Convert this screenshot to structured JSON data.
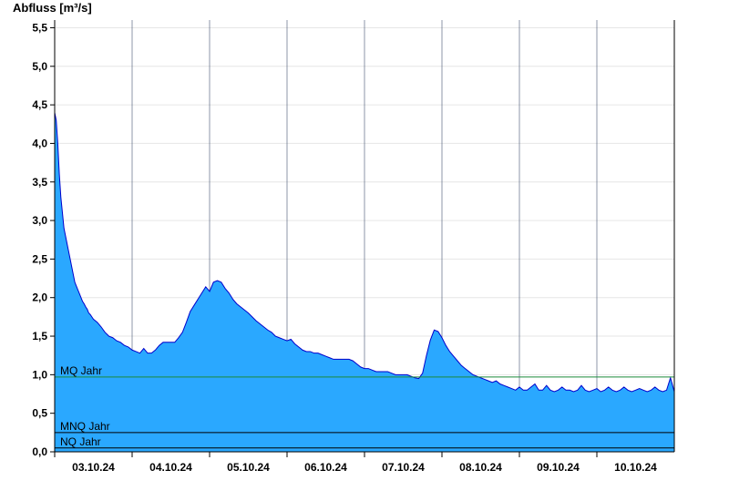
{
  "chart_data": {
    "type": "area",
    "title": "",
    "ylabel": "Abfluss [m³/s]",
    "xlabel": "",
    "ylim": [
      0,
      5.6
    ],
    "xlim_days": [
      "02.10.24 12:00",
      "10.10.24 12:00"
    ],
    "y_ticks": [
      "0,0",
      "0,5",
      "1,0",
      "1,5",
      "2,0",
      "2,5",
      "3,0",
      "3,5",
      "4,0",
      "4,5",
      "5,0",
      "5,5"
    ],
    "x_tick_labels": [
      "03.10.24",
      "04.10.24",
      "05.10.24",
      "06.10.24",
      "07.10.24",
      "08.10.24",
      "09.10.24",
      "10.10.24"
    ],
    "grid": "horizontal light grey, vertical day separators",
    "fill_color": "#2aa8ff",
    "line_color": "#0000cc",
    "series": [
      {
        "x_days_since_2024_10_03": [
          -0.5,
          -0.48,
          -0.46,
          -0.44,
          -0.42,
          -0.4,
          -0.38,
          -0.36,
          -0.34,
          -0.32,
          -0.3,
          -0.28,
          -0.26,
          -0.24,
          -0.22,
          -0.2,
          -0.18,
          -0.16,
          -0.14,
          -0.12,
          -0.1,
          -0.08,
          -0.06,
          -0.04,
          -0.02,
          0.0,
          0.05,
          0.1,
          0.15,
          0.2,
          0.25,
          0.3,
          0.35,
          0.4,
          0.45,
          0.5,
          0.55,
          0.6,
          0.65,
          0.7,
          0.75,
          0.8,
          0.85,
          0.9,
          0.95,
          1.0,
          1.05,
          1.1,
          1.15,
          1.2,
          1.25,
          1.3,
          1.35,
          1.4,
          1.45,
          1.5,
          1.55,
          1.6,
          1.65,
          1.7,
          1.75,
          1.8,
          1.85,
          1.9,
          1.95,
          2.0,
          2.05,
          2.1,
          2.15,
          2.2,
          2.25,
          2.3,
          2.35,
          2.4,
          2.45,
          2.5,
          2.55,
          2.6,
          2.65,
          2.7,
          2.75,
          2.8,
          2.85,
          2.9,
          2.95,
          3.0,
          3.05,
          3.1,
          3.15,
          3.2,
          3.25,
          3.3,
          3.35,
          3.4,
          3.45,
          3.5,
          3.55,
          3.6,
          3.65,
          3.7,
          3.75,
          3.8,
          3.85,
          3.9,
          3.95,
          4.0,
          4.05,
          4.1,
          4.15,
          4.2,
          4.25,
          4.3,
          4.35,
          4.4,
          4.45,
          4.5,
          4.55,
          4.6,
          4.65,
          4.7,
          4.75,
          4.8,
          4.85,
          4.9,
          4.95,
          5.0,
          5.05,
          5.1,
          5.15,
          5.2,
          5.25,
          5.3,
          5.35,
          5.4,
          5.45,
          5.5,
          5.55,
          5.6,
          5.65,
          5.7,
          5.75,
          5.8,
          5.85,
          5.9,
          5.95,
          6.0,
          6.05,
          6.1,
          6.15,
          6.2,
          6.25,
          6.3,
          6.35,
          6.4,
          6.45,
          6.5,
          6.55,
          6.6,
          6.65,
          6.7,
          6.75,
          6.8,
          6.85,
          6.9,
          6.95,
          7.0,
          7.05,
          7.1,
          7.15,
          7.2,
          7.25,
          7.3,
          7.35,
          7.4,
          7.45,
          7.5
        ],
        "y_m3s": [
          4.4,
          4.3,
          4.0,
          3.6,
          3.3,
          3.1,
          2.9,
          2.8,
          2.7,
          2.6,
          2.5,
          2.4,
          2.3,
          2.2,
          2.15,
          2.1,
          2.05,
          2.0,
          1.95,
          1.92,
          1.88,
          1.85,
          1.8,
          1.78,
          1.75,
          1.72,
          1.68,
          1.62,
          1.55,
          1.5,
          1.48,
          1.44,
          1.42,
          1.38,
          1.36,
          1.32,
          1.3,
          1.28,
          1.34,
          1.28,
          1.28,
          1.32,
          1.38,
          1.42,
          1.42,
          1.42,
          1.42,
          1.48,
          1.55,
          1.68,
          1.82,
          1.9,
          1.98,
          2.06,
          2.14,
          2.08,
          2.2,
          2.22,
          2.2,
          2.12,
          2.06,
          1.98,
          1.92,
          1.88,
          1.84,
          1.8,
          1.75,
          1.7,
          1.66,
          1.62,
          1.58,
          1.55,
          1.5,
          1.48,
          1.46,
          1.44,
          1.46,
          1.4,
          1.36,
          1.32,
          1.3,
          1.3,
          1.28,
          1.28,
          1.26,
          1.24,
          1.22,
          1.2,
          1.2,
          1.2,
          1.2,
          1.2,
          1.18,
          1.14,
          1.1,
          1.08,
          1.08,
          1.06,
          1.04,
          1.04,
          1.04,
          1.04,
          1.02,
          1.0,
          1.0,
          1.0,
          1.0,
          0.98,
          0.96,
          0.95,
          1.02,
          1.25,
          1.45,
          1.58,
          1.56,
          1.48,
          1.38,
          1.3,
          1.24,
          1.18,
          1.12,
          1.08,
          1.04,
          1.0,
          0.98,
          0.96,
          0.94,
          0.92,
          0.9,
          0.92,
          0.88,
          0.86,
          0.84,
          0.82,
          0.8,
          0.84,
          0.8,
          0.8,
          0.84,
          0.88,
          0.8,
          0.8,
          0.86,
          0.8,
          0.78,
          0.8,
          0.84,
          0.8,
          0.8,
          0.78,
          0.8,
          0.86,
          0.8,
          0.78,
          0.8,
          0.82,
          0.78,
          0.8,
          0.84,
          0.8,
          0.78,
          0.8,
          0.84,
          0.8,
          0.78,
          0.8,
          0.82,
          0.8,
          0.78,
          0.8,
          0.84,
          0.8,
          0.78,
          0.8,
          0.96,
          0.78
        ]
      }
    ],
    "reference_lines": [
      {
        "label": "MQ Jahr",
        "value": 0.97,
        "color": "#1a8a3a"
      },
      {
        "label": "MNQ Jahr",
        "value": 0.25,
        "color": "#000000"
      },
      {
        "label": "NQ Jahr",
        "value": 0.05,
        "color": "#000000"
      }
    ]
  }
}
